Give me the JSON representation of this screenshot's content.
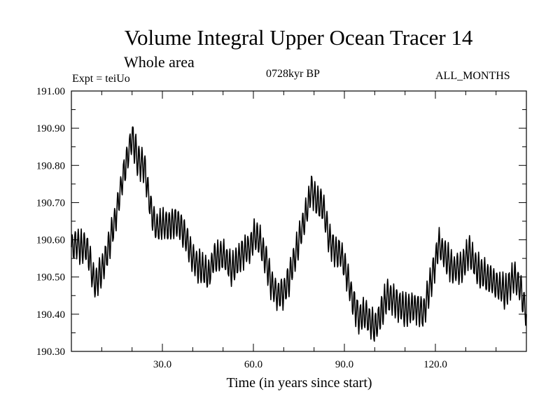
{
  "chart_data": {
    "type": "line",
    "title": "Volume Integral Upper Ocean Tracer 14",
    "subtitle": "Whole area",
    "experiment": "Expt = teiUo",
    "period": "0728kyr BP",
    "months": "ALL_MONTHS",
    "xlabel": "Time (in years since start)",
    "ylabel": "",
    "xlim": [
      0,
      150
    ],
    "ylim": [
      190.3,
      191.0
    ],
    "xticks": [
      30,
      60,
      90,
      120
    ],
    "xtick_labels": [
      "30.0",
      "60.0",
      "90.0",
      "120.0"
    ],
    "yticks": [
      190.3,
      190.4,
      190.5,
      190.6,
      190.7,
      190.8,
      190.9,
      191.0
    ],
    "ytick_labels": [
      "190.30",
      "190.40",
      "190.50",
      "190.60",
      "190.70",
      "190.80",
      "190.90",
      "191.00"
    ],
    "grid": false,
    "series": [
      {
        "name": "Volume integral",
        "color": "#000000",
        "anchor_x": [
          0,
          2,
          3,
          5,
          6,
          7,
          8,
          10,
          12,
          15,
          17,
          19,
          20,
          22,
          24,
          26,
          28,
          30,
          32,
          34,
          36,
          38,
          40,
          42,
          44,
          45,
          47,
          50,
          53,
          56,
          59,
          60,
          62,
          64,
          66,
          68,
          70,
          72,
          75,
          78,
          79,
          81,
          83,
          85,
          87,
          89,
          91,
          93,
          95,
          97,
          100,
          102,
          104,
          106,
          110,
          114,
          116,
          118,
          120,
          121,
          123,
          126,
          129,
          131,
          134,
          137,
          140,
          143,
          146,
          148,
          150
        ],
        "anchor_y": [
          190.58,
          190.59,
          190.58,
          190.58,
          190.55,
          190.5,
          190.48,
          190.52,
          190.57,
          190.68,
          190.77,
          190.84,
          190.88,
          190.81,
          190.8,
          190.69,
          190.63,
          190.64,
          190.64,
          190.65,
          190.64,
          190.6,
          190.55,
          190.53,
          190.52,
          190.5,
          190.55,
          190.56,
          190.52,
          190.56,
          190.58,
          190.61,
          190.6,
          190.55,
          190.48,
          190.45,
          190.46,
          190.5,
          190.6,
          190.69,
          190.74,
          190.7,
          190.69,
          190.6,
          190.57,
          190.56,
          190.5,
          190.43,
          190.39,
          190.4,
          190.36,
          190.4,
          190.45,
          190.44,
          190.41,
          190.42,
          190.4,
          190.47,
          190.54,
          190.59,
          190.56,
          190.52,
          190.53,
          190.57,
          190.52,
          190.5,
          190.48,
          190.46,
          190.5,
          190.47,
          190.4
        ],
        "oscillation_amplitude": 0.04,
        "oscillation_period_years": 1.0
      }
    ]
  }
}
